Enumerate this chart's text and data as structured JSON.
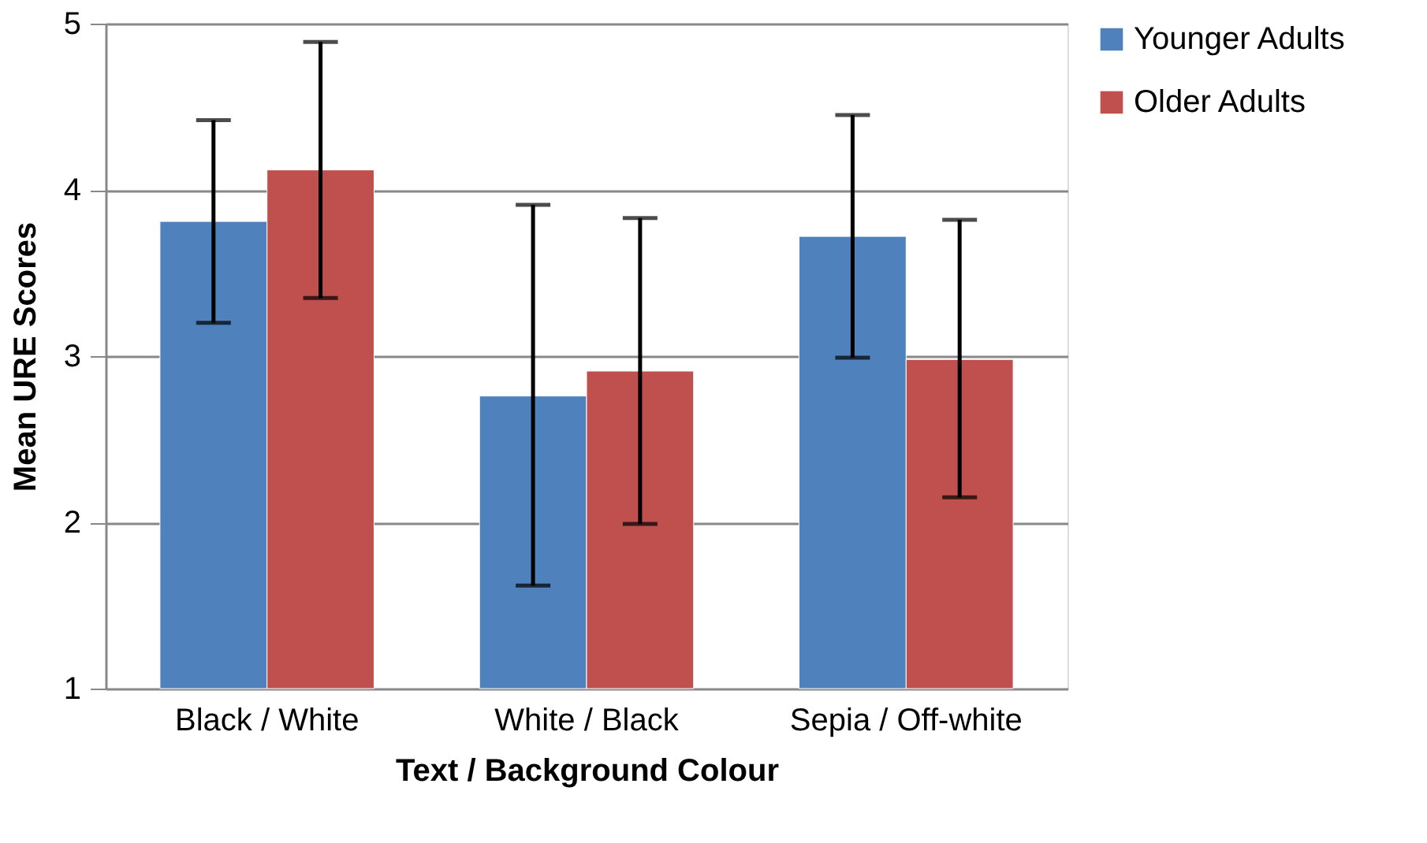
{
  "chart_data": {
    "type": "bar",
    "xlabel": "Text / Background Colour",
    "ylabel": "Mean URE Scores",
    "categories": [
      "Black / White",
      "White / Black",
      "Sepia / Off-white"
    ],
    "series": [
      {
        "name": "Younger Adults",
        "color": "#4f81bd",
        "values": [
          3.81,
          2.76,
          3.72
        ],
        "errors": [
          [
            3.2,
            4.42
          ],
          [
            1.62,
            3.91
          ],
          [
            2.99,
            4.45
          ]
        ]
      },
      {
        "name": "Older Adults",
        "color": "#c0504d",
        "values": [
          4.12,
          2.91,
          2.98
        ],
        "errors": [
          [
            3.35,
            4.89
          ],
          [
            1.99,
            3.83
          ],
          [
            2.15,
            3.82
          ]
        ]
      }
    ],
    "ylim": [
      1,
      5
    ],
    "yticks": [
      1,
      2,
      3,
      4,
      5
    ],
    "grid": "y",
    "legend": "right"
  }
}
